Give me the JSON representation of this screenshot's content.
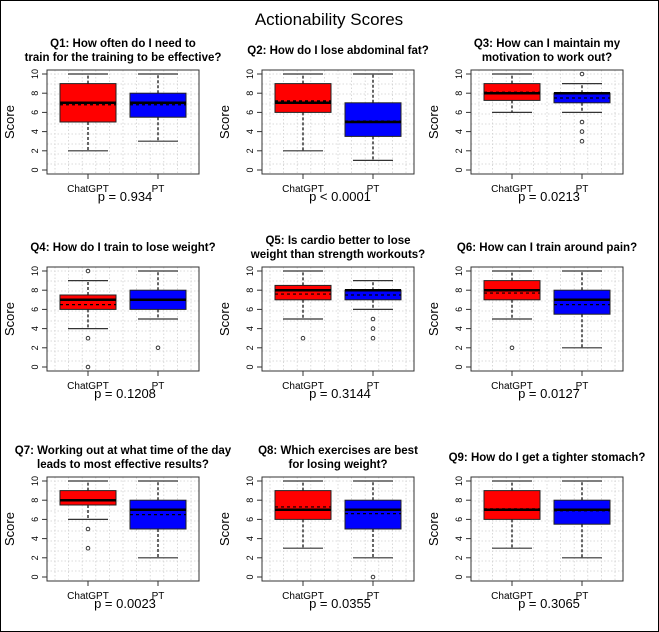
{
  "chart_data": {
    "type": "boxplot",
    "title": "Actionability Scores",
    "ylabel": "Score",
    "ylim": [
      0,
      10
    ],
    "yticks": [
      "0",
      "2",
      "4",
      "6",
      "8",
      "10"
    ],
    "categories": [
      "ChatGPT",
      "PT"
    ],
    "colors": {
      "ChatGPT": "#ff0000",
      "PT": "#0000ff"
    },
    "grid": true,
    "panels": [
      {
        "title_lines": [
          "Q1: How often do I need to",
          "train for the training to be effective?"
        ],
        "p_value": "p =  0.934",
        "groups": [
          {
            "name": "ChatGPT",
            "q1": 5,
            "median": 7,
            "q3": 9,
            "mean": 6.8,
            "whisker_low": 2,
            "whisker_high": 10,
            "outliers": []
          },
          {
            "name": "PT",
            "q1": 5.5,
            "median": 7,
            "q3": 8,
            "mean": 6.8,
            "whisker_low": 3,
            "whisker_high": 10,
            "outliers": []
          }
        ]
      },
      {
        "title_lines": [
          "Q2: How do I lose abdominal fat?"
        ],
        "p_value": "p < 0.0001",
        "groups": [
          {
            "name": "ChatGPT",
            "q1": 6,
            "median": 7,
            "q3": 9,
            "mean": 7.2,
            "whisker_low": 2,
            "whisker_high": 10,
            "outliers": []
          },
          {
            "name": "PT",
            "q1": 3.5,
            "median": 5,
            "q3": 7,
            "mean": 5.1,
            "whisker_low": 1,
            "whisker_high": 10,
            "outliers": []
          }
        ]
      },
      {
        "title_lines": [
          "Q3: How can I maintain my",
          "motivation to work out?"
        ],
        "p_value": "p =  0.0213",
        "groups": [
          {
            "name": "ChatGPT",
            "q1": 7.25,
            "median": 8,
            "q3": 9,
            "mean": 8.1,
            "whisker_low": 6,
            "whisker_high": 10,
            "outliers": []
          },
          {
            "name": "PT",
            "q1": 7,
            "median": 8,
            "q3": 8,
            "mean": 7.5,
            "whisker_low": 6,
            "whisker_high": 9,
            "outliers": [
              10,
              5,
              4,
              3
            ]
          }
        ]
      },
      {
        "title_lines": [
          "Q4: How do I train to lose weight?"
        ],
        "p_value": "p =  0.1208",
        "groups": [
          {
            "name": "ChatGPT",
            "q1": 6,
            "median": 7,
            "q3": 7.5,
            "mean": 6.5,
            "whisker_low": 4,
            "whisker_high": 9,
            "outliers": [
              10,
              3,
              0
            ]
          },
          {
            "name": "PT",
            "q1": 6,
            "median": 7,
            "q3": 8,
            "mean": 7,
            "whisker_low": 5,
            "whisker_high": 10,
            "outliers": [
              2
            ]
          }
        ]
      },
      {
        "title_lines": [
          "Q5: Is cardio better to lose",
          "weight than strength workouts?"
        ],
        "p_value": "p =  0.3144",
        "groups": [
          {
            "name": "ChatGPT",
            "q1": 7,
            "median": 8,
            "q3": 8.5,
            "mean": 7.6,
            "whisker_low": 5,
            "whisker_high": 10,
            "outliers": [
              3
            ]
          },
          {
            "name": "PT",
            "q1": 7,
            "median": 8,
            "q3": 8,
            "mean": 7.5,
            "whisker_low": 6,
            "whisker_high": 9,
            "outliers": [
              5,
              4,
              3
            ]
          }
        ]
      },
      {
        "title_lines": [
          "Q6: How can I train around pain?"
        ],
        "p_value": "p =  0.0127",
        "groups": [
          {
            "name": "ChatGPT",
            "q1": 7,
            "median": 8,
            "q3": 9,
            "mean": 7.7,
            "whisker_low": 5,
            "whisker_high": 10,
            "outliers": [
              2
            ]
          },
          {
            "name": "PT",
            "q1": 5.5,
            "median": 7,
            "q3": 8,
            "mean": 6.5,
            "whisker_low": 2,
            "whisker_high": 10,
            "outliers": []
          }
        ]
      },
      {
        "title_lines": [
          "Q7: Working out at what time of the day",
          "leads to most effective results?"
        ],
        "p_value": "p =  0.0023",
        "groups": [
          {
            "name": "ChatGPT",
            "q1": 7.5,
            "median": 8,
            "q3": 9,
            "mean": 8,
            "whisker_low": 6,
            "whisker_high": 10,
            "outliers": [
              5,
              3
            ]
          },
          {
            "name": "PT",
            "q1": 5,
            "median": 7,
            "q3": 8,
            "mean": 6.5,
            "whisker_low": 2,
            "whisker_high": 10,
            "outliers": []
          }
        ]
      },
      {
        "title_lines": [
          "Q8: Which exercises are best",
          "for losing weight?"
        ],
        "p_value": "p =  0.0355",
        "groups": [
          {
            "name": "ChatGPT",
            "q1": 6,
            "median": 7,
            "q3": 9,
            "mean": 7.3,
            "whisker_low": 3,
            "whisker_high": 10,
            "outliers": []
          },
          {
            "name": "PT",
            "q1": 5,
            "median": 7,
            "q3": 8,
            "mean": 6.6,
            "whisker_low": 2,
            "whisker_high": 10,
            "outliers": [
              0
            ]
          }
        ]
      },
      {
        "title_lines": [
          "Q9: How do I get a tighter stomach?"
        ],
        "p_value": "p =  0.3065",
        "groups": [
          {
            "name": "ChatGPT",
            "q1": 6,
            "median": 7,
            "q3": 9,
            "mean": 7.1,
            "whisker_low": 3,
            "whisker_high": 10,
            "outliers": []
          },
          {
            "name": "PT",
            "q1": 5.5,
            "median": 7,
            "q3": 8,
            "mean": 6.9,
            "whisker_low": 2,
            "whisker_high": 10,
            "outliers": []
          }
        ]
      }
    ]
  }
}
